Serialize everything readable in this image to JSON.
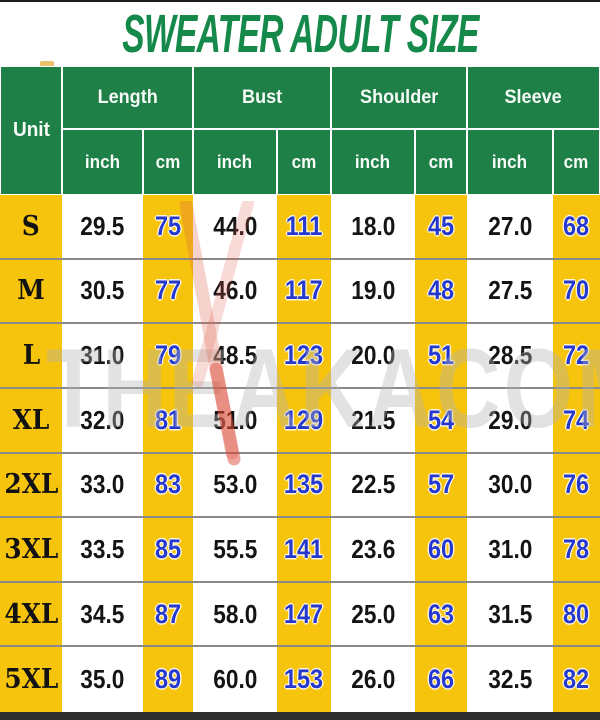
{
  "title": "SWEATER ADULT SIZE",
  "watermark": {
    "prefix": "THE",
    "suffix": "AKACOM",
    "logo": "red-y-logo"
  },
  "colors": {
    "header_green": "#1E7F47",
    "title_green": "#15894A",
    "cell_yellow": "#F6C40D",
    "cm_blue": "#2639CC",
    "bottom_bar": "#2E2E2E"
  },
  "table": {
    "unit_label": "Unit",
    "groups": [
      {
        "label": "Length"
      },
      {
        "label": "Bust"
      },
      {
        "label": "Shoulder"
      },
      {
        "label": "Sleeve"
      }
    ],
    "sub_headers": [
      "inch",
      "cm",
      "inch",
      "cm",
      "inch",
      "cm",
      "inch",
      "cm"
    ],
    "rows": [
      {
        "size": "S",
        "values": [
          "29.5",
          "75",
          "44.0",
          "111",
          "18.0",
          "45",
          "27.0",
          "68"
        ]
      },
      {
        "size": "M",
        "values": [
          "30.5",
          "77",
          "46.0",
          "117",
          "19.0",
          "48",
          "27.5",
          "70"
        ]
      },
      {
        "size": "L",
        "values": [
          "31.0",
          "79",
          "48.5",
          "123",
          "20.0",
          "51",
          "28.5",
          "72"
        ]
      },
      {
        "size": "XL",
        "values": [
          "32.0",
          "81",
          "51.0",
          "129",
          "21.5",
          "54",
          "29.0",
          "74"
        ]
      },
      {
        "size": "2XL",
        "values": [
          "33.0",
          "83",
          "53.0",
          "135",
          "22.5",
          "57",
          "30.0",
          "76"
        ]
      },
      {
        "size": "3XL",
        "values": [
          "33.5",
          "85",
          "55.5",
          "141",
          "23.6",
          "60",
          "31.0",
          "78"
        ]
      },
      {
        "size": "4XL",
        "values": [
          "34.5",
          "87",
          "58.0",
          "147",
          "25.0",
          "63",
          "31.5",
          "80"
        ]
      },
      {
        "size": "5XL",
        "values": [
          "35.0",
          "89",
          "60.0",
          "153",
          "26.0",
          "66",
          "32.5",
          "82"
        ]
      }
    ]
  }
}
